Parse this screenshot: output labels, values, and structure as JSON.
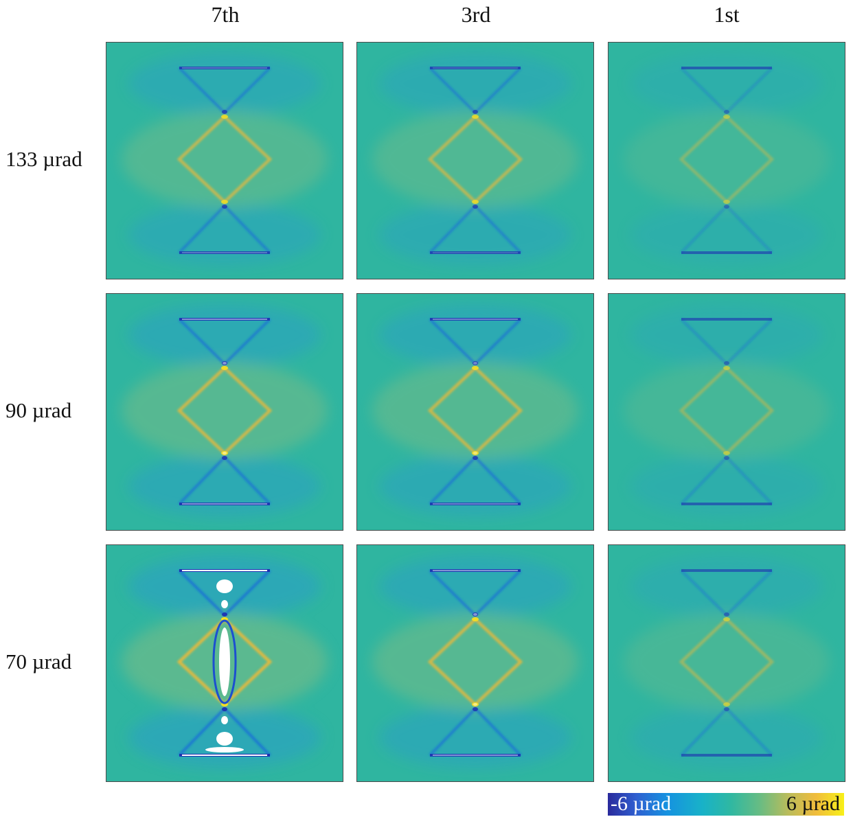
{
  "columns": [
    {
      "label": "7th"
    },
    {
      "label": "3rd"
    },
    {
      "label": "1st"
    }
  ],
  "rows": [
    {
      "label": "133 µrad"
    },
    {
      "label": "90 µrad"
    },
    {
      "label": "70 µrad"
    }
  ],
  "colorbar": {
    "min_label": "-6 µrad",
    "max_label": "6 µrad",
    "colors": [
      "#2a2a9c",
      "#1692e0",
      "#2fb8a2",
      "#b8bc5c",
      "#f8f018"
    ]
  },
  "panels": [
    [
      {
        "intensity": 0.8,
        "saturation": 0.25
      },
      {
        "intensity": 0.75,
        "saturation": 0.15
      },
      {
        "intensity": 0.45,
        "saturation": 0.0
      }
    ],
    [
      {
        "intensity": 0.9,
        "saturation": 0.45
      },
      {
        "intensity": 0.85,
        "saturation": 0.35
      },
      {
        "intensity": 0.5,
        "saturation": 0.0
      }
    ],
    [
      {
        "intensity": 1.0,
        "saturation": 1.0
      },
      {
        "intensity": 0.9,
        "saturation": 0.45
      },
      {
        "intensity": 0.55,
        "saturation": 0.1
      }
    ]
  ]
}
